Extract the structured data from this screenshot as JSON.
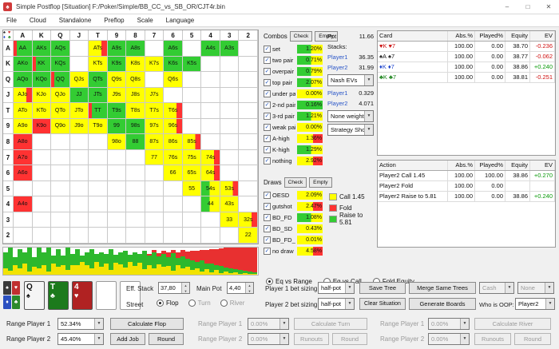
{
  "window": {
    "title": "Simple Postflop [Situation] F:/Poker/Simple/BB_CC_vs_SB_OR/CJT4r.bin",
    "icon_glyph": "♠",
    "controls": [
      {
        "g": "–"
      },
      {
        "g": "□"
      },
      {
        "g": "✕"
      }
    ]
  },
  "menu": {
    "items": [
      "File",
      "Cloud",
      "Standalone",
      "Preflop",
      "Scale",
      "Language"
    ]
  },
  "ui": {
    "check_glyph": "✓",
    "dropdown_arrow": "▼",
    "spin_up": "▲",
    "spin_down": "▼"
  },
  "suit_colors": {
    "♠": "#1a1a1a",
    "♥": "#cc1111",
    "♦": "#1d44cc",
    "♣": "#168016"
  },
  "matrix": {
    "ranks": [
      "A",
      "K",
      "Q",
      "J",
      "T",
      "9",
      "8",
      "7",
      "6",
      "5",
      "4",
      "3",
      "2"
    ],
    "suit_filter": [
      {
        "g": "♠",
        "c": "#222222"
      },
      {
        "g": "♥",
        "c": "#cc2222"
      },
      {
        "g": "♦",
        "c": "#2244cc"
      },
      {
        "g": "♣",
        "c": "#228822"
      }
    ],
    "cells": [
      {
        "r": 0,
        "c": 0,
        "t": "AA",
        "k": "gr"
      },
      {
        "r": 0,
        "c": 1,
        "t": "AKs",
        "k": "g"
      },
      {
        "r": 0,
        "c": 2,
        "t": "AQs",
        "k": "g"
      },
      {
        "r": 0,
        "c": 4,
        "t": "ATs",
        "k": "yr"
      },
      {
        "r": 0,
        "c": 5,
        "t": "A9s",
        "k": "g"
      },
      {
        "r": 0,
        "c": 6,
        "t": "A8s",
        "k": "g"
      },
      {
        "r": 0,
        "c": 8,
        "t": "A6s",
        "k": "g"
      },
      {
        "r": 0,
        "c": 10,
        "t": "A4s",
        "k": "g"
      },
      {
        "r": 0,
        "c": 11,
        "t": "A3s",
        "k": "g"
      },
      {
        "r": 1,
        "c": 0,
        "t": "AKo",
        "k": "g"
      },
      {
        "r": 1,
        "c": 1,
        "t": "KK",
        "k": "gr"
      },
      {
        "r": 1,
        "c": 2,
        "t": "KQs",
        "k": "g"
      },
      {
        "r": 1,
        "c": 4,
        "t": "KTs",
        "k": "y"
      },
      {
        "r": 1,
        "c": 5,
        "t": "K9s",
        "k": "g"
      },
      {
        "r": 1,
        "c": 6,
        "t": "K8s",
        "k": "y"
      },
      {
        "r": 1,
        "c": 7,
        "t": "K7s",
        "k": "y"
      },
      {
        "r": 1,
        "c": 8,
        "t": "K6s",
        "k": "g"
      },
      {
        "r": 1,
        "c": 9,
        "t": "K5s",
        "k": "g"
      },
      {
        "r": 2,
        "c": 0,
        "t": "AQo",
        "k": "g"
      },
      {
        "r": 2,
        "c": 1,
        "t": "KQo",
        "k": "g"
      },
      {
        "r": 2,
        "c": 2,
        "t": "QQ",
        "k": "gr"
      },
      {
        "r": 2,
        "c": 3,
        "t": "QJs",
        "k": "y"
      },
      {
        "r": 2,
        "c": 4,
        "t": "QTs",
        "k": "g"
      },
      {
        "r": 2,
        "c": 5,
        "t": "Q9s",
        "k": "y"
      },
      {
        "r": 2,
        "c": 6,
        "t": "Q8s",
        "k": "y"
      },
      {
        "r": 2,
        "c": 8,
        "t": "Q6s",
        "k": "y"
      },
      {
        "r": 3,
        "c": 0,
        "t": "AJo",
        "k": "yr"
      },
      {
        "r": 3,
        "c": 1,
        "t": "KJo",
        "k": "y"
      },
      {
        "r": 3,
        "c": 2,
        "t": "QJo",
        "k": "y"
      },
      {
        "r": 3,
        "c": 3,
        "t": "JJ",
        "k": "g"
      },
      {
        "r": 3,
        "c": 4,
        "t": "JTs",
        "k": "g"
      },
      {
        "r": 3,
        "c": 5,
        "t": "J9s",
        "k": "y"
      },
      {
        "r": 3,
        "c": 6,
        "t": "J8s",
        "k": "y"
      },
      {
        "r": 3,
        "c": 7,
        "t": "J7s",
        "k": "y"
      },
      {
        "r": 4,
        "c": 0,
        "t": "ATo",
        "k": "y"
      },
      {
        "r": 4,
        "c": 1,
        "t": "KTo",
        "k": "y"
      },
      {
        "r": 4,
        "c": 2,
        "t": "QTo",
        "k": "y"
      },
      {
        "r": 4,
        "c": 3,
        "t": "JTo",
        "k": "y"
      },
      {
        "r": 4,
        "c": 4,
        "t": "TT",
        "k": "gr"
      },
      {
        "r": 4,
        "c": 5,
        "t": "T9s",
        "k": "g"
      },
      {
        "r": 4,
        "c": 6,
        "t": "T8s",
        "k": "y"
      },
      {
        "r": 4,
        "c": 7,
        "t": "T7s",
        "k": "y"
      },
      {
        "r": 4,
        "c": 8,
        "t": "T6s",
        "k": "yr"
      },
      {
        "r": 5,
        "c": 0,
        "t": "A9o",
        "k": "y"
      },
      {
        "r": 5,
        "c": 1,
        "t": "K9o",
        "k": "r"
      },
      {
        "r": 5,
        "c": 2,
        "t": "Q9o",
        "k": "y"
      },
      {
        "r": 5,
        "c": 3,
        "t": "J9o",
        "k": "y"
      },
      {
        "r": 5,
        "c": 4,
        "t": "T9o",
        "k": "y"
      },
      {
        "r": 5,
        "c": 5,
        "t": "99",
        "k": "g"
      },
      {
        "r": 5,
        "c": 6,
        "t": "98s",
        "k": "g"
      },
      {
        "r": 5,
        "c": 7,
        "t": "97s",
        "k": "y"
      },
      {
        "r": 5,
        "c": 8,
        "t": "96s",
        "k": "yr"
      },
      {
        "r": 6,
        "c": 0,
        "t": "A8o",
        "k": "r"
      },
      {
        "r": 6,
        "c": 5,
        "t": "98o",
        "k": "y"
      },
      {
        "r": 6,
        "c": 6,
        "t": "88",
        "k": "g"
      },
      {
        "r": 6,
        "c": 7,
        "t": "87s",
        "k": "y"
      },
      {
        "r": 6,
        "c": 8,
        "t": "86s",
        "k": "y"
      },
      {
        "r": 6,
        "c": 9,
        "t": "85s",
        "k": "yr"
      },
      {
        "r": 7,
        "c": 0,
        "t": "A7o",
        "k": "r"
      },
      {
        "r": 7,
        "c": 7,
        "t": "77",
        "k": "y"
      },
      {
        "r": 7,
        "c": 8,
        "t": "76s",
        "k": "y"
      },
      {
        "r": 7,
        "c": 9,
        "t": "75s",
        "k": "y"
      },
      {
        "r": 7,
        "c": 10,
        "t": "74s",
        "k": "yr"
      },
      {
        "r": 8,
        "c": 0,
        "t": "A6o",
        "k": "r"
      },
      {
        "r": 8,
        "c": 8,
        "t": "66",
        "k": "y"
      },
      {
        "r": 8,
        "c": 9,
        "t": "65s",
        "k": "y"
      },
      {
        "r": 8,
        "c": 10,
        "t": "64s",
        "k": "yr"
      },
      {
        "r": 9,
        "c": 9,
        "t": "55",
        "k": "y"
      },
      {
        "r": 9,
        "c": 10,
        "t": "54s",
        "k": "gy"
      },
      {
        "r": 9,
        "c": 11,
        "t": "53s",
        "k": "yr"
      },
      {
        "r": 10,
        "c": 0,
        "t": "A4o",
        "k": "r"
      },
      {
        "r": 10,
        "c": 10,
        "t": "44",
        "k": "gy"
      },
      {
        "r": 10,
        "c": 11,
        "t": "43s",
        "k": "y"
      },
      {
        "r": 11,
        "c": 11,
        "t": "33",
        "k": "y"
      },
      {
        "r": 11,
        "c": 12,
        "t": "32s",
        "k": "yr"
      },
      {
        "r": 12,
        "c": 12,
        "t": "22",
        "k": "y"
      }
    ]
  },
  "combos": {
    "title": "Combos",
    "check": "Check",
    "empty": "Empty",
    "items": [
      {
        "label": "set",
        "pct": "1.20%",
        "bar": "gy",
        "checked": true
      },
      {
        "label": "two pair",
        "pct": "0.71%",
        "bar": "gy",
        "checked": true
      },
      {
        "label": "overpair",
        "pct": "0.79%",
        "bar": "gy",
        "checked": true
      },
      {
        "label": "top pair",
        "pct": "2.07%",
        "bar": "gy",
        "checked": true
      },
      {
        "label": "under pair",
        "pct": "0.00%",
        "bar": "y",
        "checked": true
      },
      {
        "label": "2-nd pair",
        "pct": "0.16%",
        "bar": "g",
        "checked": true
      },
      {
        "label": "3-rd pair",
        "pct": "1.21%",
        "bar": "gy",
        "checked": true
      },
      {
        "label": "weak pair",
        "pct": "0.00%",
        "bar": "y",
        "checked": true
      },
      {
        "label": "A-high",
        "pct": "1.36%",
        "bar": "yr",
        "checked": true
      },
      {
        "label": "K-high",
        "pct": "1.29%",
        "bar": "gy",
        "checked": true
      },
      {
        "label": "nothing",
        "pct": "2.92%",
        "bar": "yr",
        "checked": true
      }
    ]
  },
  "draws": {
    "title": "Draws",
    "check": "Check",
    "empty": "Empty",
    "items": [
      {
        "label": "OESD",
        "pct": "2.09%",
        "bar": "y",
        "checked": true
      },
      {
        "label": "gutshot",
        "pct": "2.47%",
        "bar": "yr",
        "checked": true
      },
      {
        "label": "BD_FD",
        "pct": "1.08%",
        "bar": "gy",
        "checked": true
      },
      {
        "label": "BD_SD",
        "pct": "0.43%",
        "bar": "y",
        "checked": true
      },
      {
        "label": "BD_FD_SD",
        "pct": "0.01%",
        "bar": "y",
        "checked": true
      },
      {
        "label": "no draw",
        "pct": "4.58%",
        "bar": "yr",
        "checked": true
      }
    ]
  },
  "pot": {
    "pot_label": "Pot",
    "pot_value": "11.66",
    "stacks_label": "Stacks:",
    "stack1_name": "Player1",
    "stack1_value": "36.35",
    "stack2_name": "Player2",
    "stack2_value": "31.99",
    "nash_label": "Nash EVs",
    "nash1_name": "Player1",
    "nash1_value": "0.329",
    "nash2_name": "Player2",
    "nash2_value": "4.071",
    "weight_label": "None weight",
    "strategy_label": "Strategy Show"
  },
  "legend": {
    "items": [
      {
        "label": "Call 1.45",
        "color": "#ffff00"
      },
      {
        "label": "Fold",
        "color": "#ff3232"
      },
      {
        "label": "Raise to 5.81",
        "color": "#33cc33"
      }
    ]
  },
  "hands_table": {
    "columns": [
      "Card",
      "Abs.%",
      "Played%",
      "Equity",
      "EV"
    ],
    "widths": [
      88,
      34,
      38,
      31,
      31
    ],
    "rows": [
      {
        "cards": [
          {
            "s": "♥",
            "r": "K"
          },
          {
            "s": "♥",
            "r": "7"
          }
        ],
        "abs": "100.00",
        "played": "0.00",
        "equity": "38.70",
        "ev": "-0.236",
        "ev_color": "neg"
      },
      {
        "cards": [
          {
            "s": "♠",
            "r": "A"
          },
          {
            "s": "♠",
            "r": "7"
          }
        ],
        "abs": "100.00",
        "played": "0.00",
        "equity": "38.77",
        "ev": "-0.062",
        "ev_color": "neg"
      },
      {
        "cards": [
          {
            "s": "♦",
            "r": "K"
          },
          {
            "s": "♦",
            "r": "7"
          }
        ],
        "abs": "100.00",
        "played": "0.00",
        "equity": "38.86",
        "ev": "+0.240",
        "ev_color": "pos"
      },
      {
        "cards": [
          {
            "s": "♣",
            "r": "K"
          },
          {
            "s": "♣",
            "r": "7"
          }
        ],
        "abs": "100.00",
        "played": "0.00",
        "equity": "38.81",
        "ev": "-0.251",
        "ev_color": "neg"
      }
    ]
  },
  "actions_table": {
    "columns": [
      "Action",
      "Abs.%",
      "Played%",
      "Equity",
      "EV"
    ],
    "widths": [
      88,
      34,
      38,
      31,
      31
    ],
    "rows": [
      {
        "action": "Player2 Call 1.45",
        "abs": "100.00",
        "played": "100.00",
        "equity": "38.86",
        "ev": "+0.270",
        "ev_color": "pos"
      },
      {
        "action": "Player2 Fold",
        "abs": "100.00",
        "played": "0.00",
        "equity": "",
        "ev": ""
      },
      {
        "action": "Player2 Raise to 5.81",
        "abs": "100.00",
        "played": "0.00",
        "equity": "38.86",
        "ev": "+0.240",
        "ev_color": "pos"
      }
    ]
  },
  "histogram": {
    "bars": [
      [
        20,
        8,
        0
      ],
      [
        30,
        5,
        0
      ],
      [
        10,
        12,
        0
      ],
      [
        24,
        8,
        0
      ],
      [
        14,
        14,
        0
      ],
      [
        32,
        4,
        0
      ],
      [
        12,
        10,
        0
      ],
      [
        26,
        8,
        0
      ],
      [
        16,
        12,
        0
      ],
      [
        30,
        4,
        0
      ],
      [
        10,
        14,
        0
      ],
      [
        22,
        10,
        0
      ],
      [
        12,
        12,
        0
      ],
      [
        28,
        6,
        0
      ],
      [
        14,
        12,
        0
      ],
      [
        20,
        12,
        0
      ],
      [
        8,
        16,
        0
      ],
      [
        16,
        12,
        0
      ],
      [
        24,
        8,
        0
      ],
      [
        10,
        16,
        0
      ],
      [
        18,
        10,
        0
      ],
      [
        12,
        14,
        0
      ],
      [
        26,
        6,
        0
      ],
      [
        10,
        15,
        0
      ],
      [
        15,
        13,
        0
      ],
      [
        21,
        9,
        0
      ],
      [
        9,
        16,
        0
      ],
      [
        17,
        11,
        0
      ],
      [
        11,
        15,
        0
      ],
      [
        23,
        7,
        0
      ],
      [
        12,
        12,
        2
      ],
      [
        20,
        8,
        3
      ],
      [
        10,
        13,
        4
      ],
      [
        16,
        10,
        4
      ],
      [
        11,
        11,
        6
      ],
      [
        22,
        5,
        4
      ],
      [
        9,
        12,
        7
      ],
      [
        15,
        8,
        8
      ],
      [
        10,
        10,
        9
      ],
      [
        12,
        6,
        12
      ],
      [
        8,
        8,
        14
      ],
      [
        14,
        4,
        13
      ],
      [
        7,
        7,
        17
      ],
      [
        11,
        3,
        18
      ],
      [
        6,
        6,
        20
      ],
      [
        9,
        2,
        22
      ],
      [
        5,
        4,
        25
      ],
      [
        7,
        2,
        27
      ],
      [
        4,
        3,
        29
      ],
      [
        6,
        1,
        31
      ],
      [
        3,
        2,
        32
      ],
      [
        4,
        1,
        33
      ],
      [
        2,
        1,
        34
      ]
    ]
  },
  "equity_view": {
    "options": [
      {
        "label": "Eq vs Range",
        "selected": true
      },
      {
        "label": "Eq vs Call",
        "selected": false
      },
      {
        "label": "Fold Equity",
        "selected": false
      }
    ]
  },
  "board": {
    "cards": [
      {
        "rank": "Q",
        "suit": "♠"
      },
      {
        "rank": "T",
        "suit": "♣"
      },
      {
        "rank": "4",
        "suit": "♥"
      }
    ],
    "empty_slots": 2,
    "suit_styles": {
      "♠": {
        "bg": "#f5f5f5",
        "fg": "#111111"
      },
      "♣": {
        "bg": "#1c7a1c",
        "fg": "#ffffff"
      },
      "♥": {
        "bg": "#b02222",
        "fg": "#ffffff"
      },
      "♦": {
        "bg": "#2b50c0",
        "fg": "#ffffff"
      }
    }
  },
  "deck": {
    "suits": [
      {
        "g": "♠",
        "bg": "#3a3a3a"
      },
      {
        "g": "♥",
        "bg": "#c03030"
      },
      {
        "g": "♦",
        "bg": "#2b50c0"
      },
      {
        "g": "♣",
        "bg": "#2b8a2b"
      }
    ]
  },
  "stack": {
    "eff_label": "Eff. Stack",
    "eff_value": "37,80",
    "pot_label": "Main Pot",
    "pot_value": "4,40"
  },
  "street": {
    "label": "Street",
    "options": [
      {
        "label": "Flop",
        "selected": true,
        "enabled": true
      },
      {
        "label": "Turn",
        "selected": false,
        "enabled": false
      },
      {
        "label": "River",
        "selected": false,
        "enabled": false
      }
    ]
  },
  "sizing": {
    "p1_label": "Player 1 bet sizing:",
    "p1_value": "half-pot",
    "p2_label": "Player 2 bet sizing:",
    "p2_value": "half-pot"
  },
  "tree": {
    "save": "Save Tree",
    "merge": "Merge Same Trees",
    "cash": "Cash",
    "none": "None",
    "clear": "Clear Situation",
    "generate": "Generate Boards",
    "oop_label": "Who is OOP:",
    "oop_value": "Player2"
  },
  "ranges": {
    "p1_label": "Range Player 1",
    "p1_pct": "52.34%",
    "calc_flop": "Calculate Flop",
    "p1_label2": "Range Player 1",
    "p1_pct2": "0.00%",
    "calc_turn": "Calculate Turn",
    "p1_label3": "Range Player 1",
    "p1_pct3": "0.00%",
    "calc_river": "Calculate River",
    "p2_label": "Range Player 2",
    "p2_pct": "45.40%",
    "add_job": "Add Job",
    "round": "Round",
    "p2_label2": "Range Player 2",
    "p2_pct2": "0.00%",
    "runouts": "Runouts",
    "round2": "Round",
    "p2_label3": "Range Player 2",
    "p2_pct3": "0.00%",
    "runouts2": "Runouts",
    "round3": "Round"
  }
}
